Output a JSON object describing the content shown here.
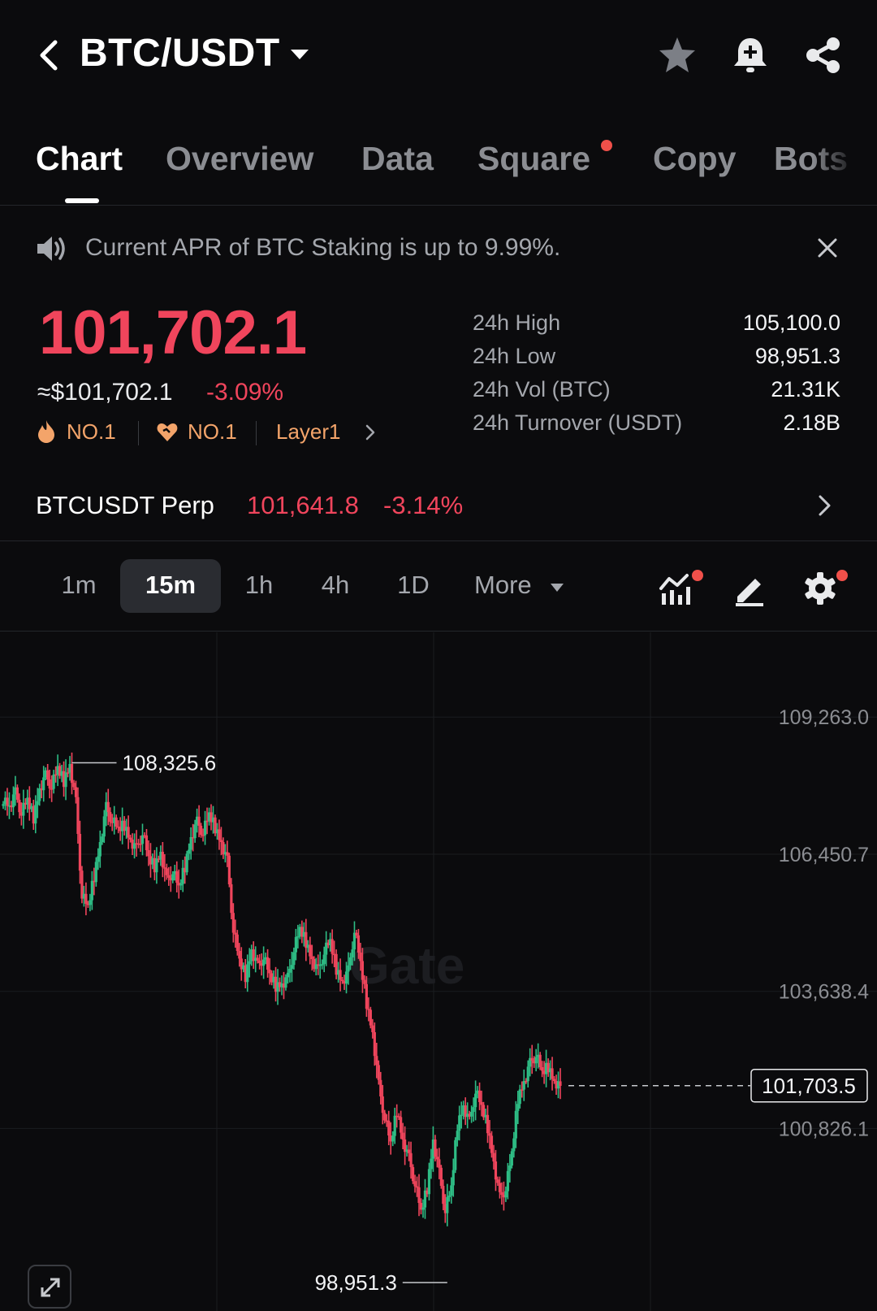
{
  "header": {
    "pair": "BTC/USDT"
  },
  "tabs": [
    {
      "label": "Chart",
      "active": true
    },
    {
      "label": "Overview"
    },
    {
      "label": "Data"
    },
    {
      "label": "Square",
      "dot": true
    },
    {
      "label": "Copy"
    },
    {
      "label": "Bots"
    }
  ],
  "banner": {
    "text": "Current APR of BTC Staking is up to 9.99%."
  },
  "price": {
    "last": "101,702.1",
    "usd": "≈$101,702.1",
    "change_pct": "-3.09%",
    "tags": [
      "NO.1",
      "NO.1",
      "Layer1"
    ]
  },
  "stats": [
    {
      "label": "24h High",
      "value": "105,100.0"
    },
    {
      "label": "24h Low",
      "value": "98,951.3"
    },
    {
      "label": "24h Vol (BTC)",
      "value": "21.31K"
    },
    {
      "label": "24h Turnover (USDT)",
      "value": "2.18B"
    }
  ],
  "perp": {
    "name": "BTCUSDT Perp",
    "price": "101,641.8",
    "change_pct": "-3.14%"
  },
  "timeframes": {
    "items": [
      "1m",
      "15m",
      "1h",
      "4h",
      "1D"
    ],
    "selected": "15m",
    "more_label": "More"
  },
  "colors": {
    "up": "#2ebd85",
    "down": "#f0455c",
    "tag": "#f3a46a",
    "dot": "#f0504a"
  },
  "chart_data": {
    "type": "candlestick",
    "interval": "15m",
    "y_ticks": [
      "109,263.0",
      "106,450.7",
      "103,638.4",
      "100,826.1"
    ],
    "ylim": [
      97500,
      110500
    ],
    "high_marker": "108,325.6",
    "low_marker": "98,951.3",
    "current_price_label": "101,703.5",
    "watermark": "Gate",
    "close_path": [
      107600,
      107450,
      107700,
      107300,
      107550,
      107200,
      107800,
      108050,
      107850,
      108200,
      107950,
      108300,
      107500,
      105600,
      105350,
      106000,
      106700,
      107400,
      107150,
      106950,
      107050,
      106750,
      106550,
      106900,
      106350,
      106200,
      106500,
      105900,
      106100,
      105750,
      106200,
      106800,
      107100,
      106900,
      107250,
      107000,
      106700,
      106300,
      104900,
      104250,
      103950,
      104500,
      104150,
      104350,
      103950,
      103750,
      103800,
      103900,
      104500,
      104900,
      104650,
      104300,
      104050,
      104450,
      104650,
      104100,
      103850,
      104050,
      104900,
      104200,
      103400,
      102800,
      101700,
      101050,
      100500,
      101200,
      100600,
      100200,
      99700,
      99100,
      99600,
      100600,
      99900,
      99150,
      99600,
      100900,
      101300,
      100950,
      101600,
      101250,
      100850,
      100150,
      99400,
      99600,
      100300,
      101450,
      101800,
      102150,
      102350,
      101950,
      102100,
      101800,
      101700
    ]
  }
}
